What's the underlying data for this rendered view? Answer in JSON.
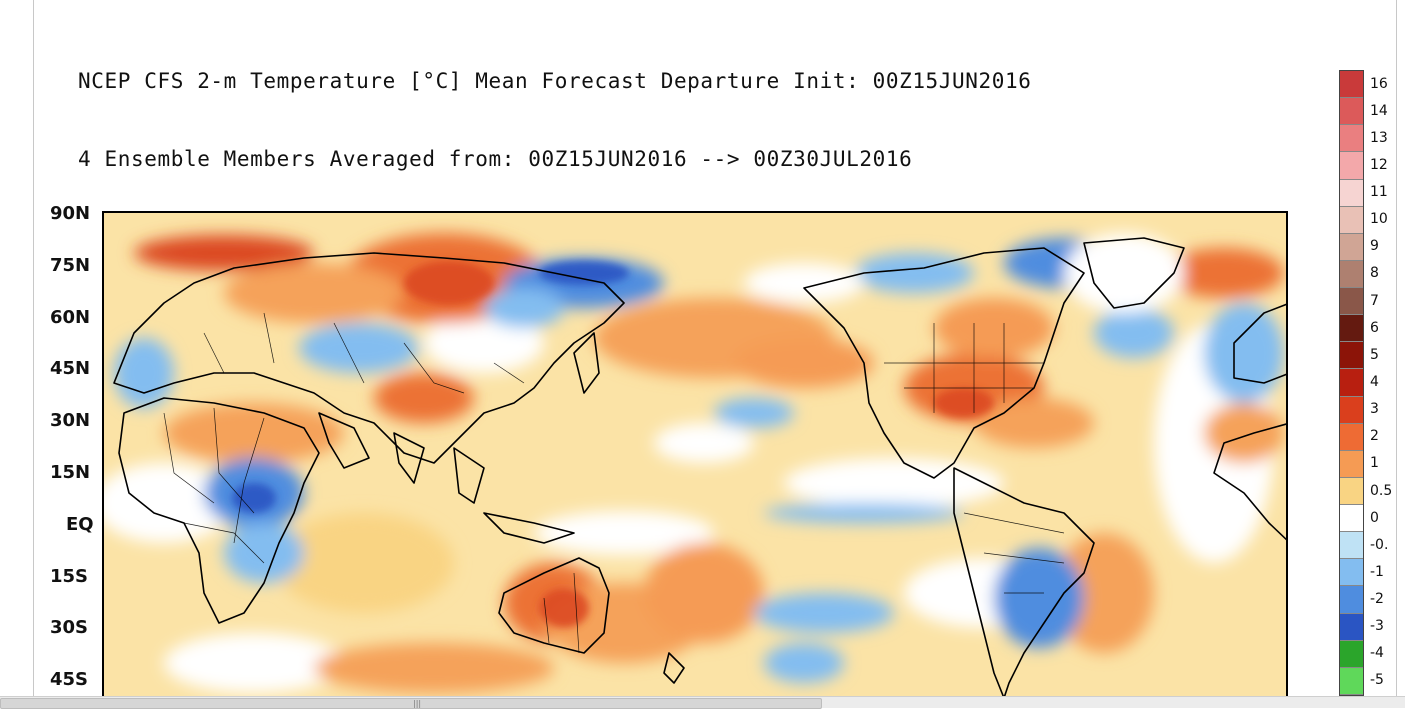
{
  "title": {
    "line1": "NCEP CFS 2-m Temperature [°C] Mean Forecast Departure Init: 00Z15JUN2016",
    "line2": "4 Ensemble Members Averaged from: 00Z15JUN2016 --> 00Z30JUL2016"
  },
  "y_axis": {
    "labels": [
      "90N",
      "75N",
      "60N",
      "45N",
      "30N",
      "15N",
      "EQ",
      "15S",
      "30S",
      "45S"
    ]
  },
  "colorbar": {
    "levels": [
      {
        "label": "16",
        "color": "#c93a3a"
      },
      {
        "label": "14",
        "color": "#dc5a5a"
      },
      {
        "label": "13",
        "color": "#ea7f80"
      },
      {
        "label": "12",
        "color": "#f3a8aa"
      },
      {
        "label": "11",
        "color": "#f6d4d2"
      },
      {
        "label": "10",
        "color": "#e9c1b6"
      },
      {
        "label": "9",
        "color": "#d0a595"
      },
      {
        "label": "8",
        "color": "#ae8070"
      },
      {
        "label": "7",
        "color": "#8a5749"
      },
      {
        "label": "6",
        "color": "#641a10"
      },
      {
        "label": "5",
        "color": "#8c1408"
      },
      {
        "label": "4",
        "color": "#b81f10"
      },
      {
        "label": "3",
        "color": "#da3f1d"
      },
      {
        "label": "2",
        "color": "#ee6b34"
      },
      {
        "label": "1",
        "color": "#f59b54"
      },
      {
        "label": "0.5",
        "color": "#f9d483"
      },
      {
        "label": "0",
        "color": "#ffffff"
      },
      {
        "label": "-0.",
        "color": "#bfe2f5"
      },
      {
        "label": "-1",
        "color": "#83bdf0"
      },
      {
        "label": "-2",
        "color": "#4f8ddf"
      },
      {
        "label": "-3",
        "color": "#2a55c3"
      },
      {
        "label": "-4",
        "color": "#2ba52b"
      },
      {
        "label": "-5",
        "color": "#5fd85a"
      }
    ]
  },
  "map_colors": {
    "ocean_neutral": "#fbeab4",
    "warm_1": "#f9d483",
    "warm_2": "#f5a25a",
    "warm_3": "#ec7236",
    "warm_4": "#dc4a24",
    "cool_1": "#bfe2f5",
    "cool_2": "#83bdf0",
    "cool_3": "#4f8ddf",
    "white": "#ffffff"
  }
}
